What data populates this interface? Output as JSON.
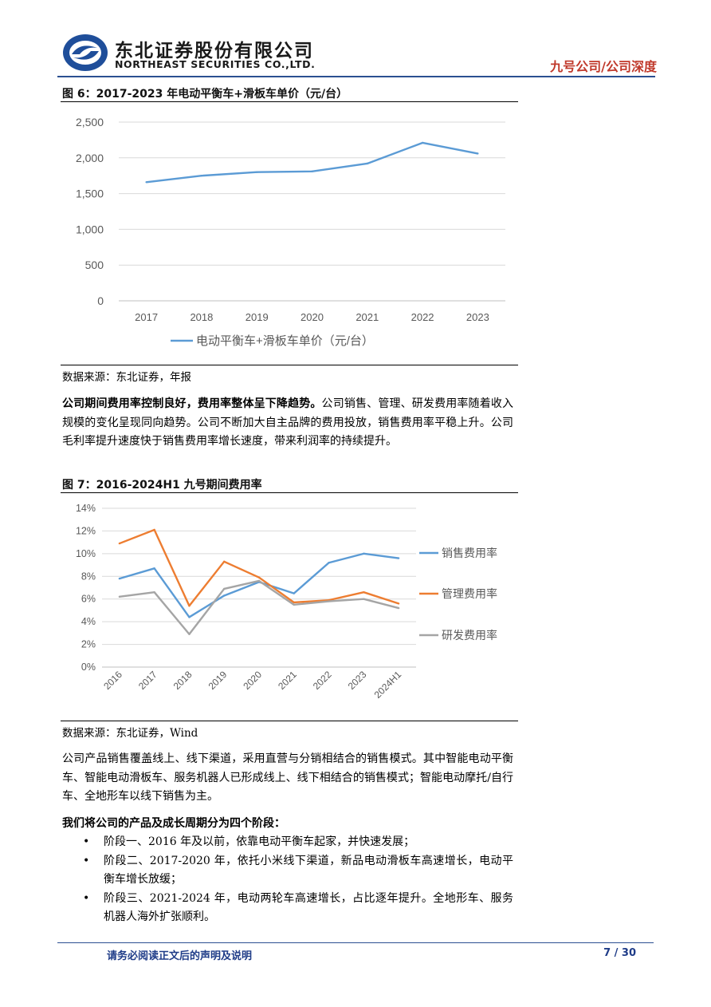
{
  "header": {
    "company_cn": "东北证券股份有限公司",
    "company_en": "NORTHEAST SECURITIES CO.,LTD.",
    "doc_type": "九号公司/公司深度"
  },
  "figure6": {
    "caption": "图 6：2017-2023 年电动平衡车+滑板车单价（元/台）",
    "source": "数据来源：东北证券，年报"
  },
  "paragraph1": {
    "bold": "公司期间费用率控制良好，费用率整体呈下降趋势。",
    "text": "公司销售、管理、研发费用率随着收入规模的变化呈现同向趋势。公司不断加大自主品牌的费用投放，销售费用率平稳上升。公司毛利率提升速度快于销售费用率增长速度，带来利润率的持续提升。"
  },
  "figure7": {
    "caption": "图 7：2016-2024H1 九号期间费用率",
    "source": "数据来源：东北证券，Wind"
  },
  "paragraph2": "公司产品销售覆盖线上、线下渠道，采用直营与分销相结合的销售模式。其中智能电动平衡车、智能电动滑板车、服务机器人已形成线上、线下相结合的销售模式；智能电动摩托/自行车、全地形车以线下销售为主。",
  "paragraph3_bold": "我们将公司的产品及成长周期分为四个阶段：",
  "bullets": [
    "阶段一、2016 年及以前，依靠电动平衡车起家，并快速发展；",
    "阶段二、2017-2020 年，依托小米线下渠道，新品电动滑板车高速增长，电动平衡车增长放缓；",
    "阶段三、2021-2024 年，电动两轮车高速增长，占比逐年提升。全地形车、服务机器人海外扩张顺利。"
  ],
  "footer": {
    "disclaimer": "请务必阅读正文后的声明及说明",
    "page": "7 / 30"
  },
  "chart_data": [
    {
      "type": "line",
      "categories": [
        "2017",
        "2018",
        "2019",
        "2020",
        "2021",
        "2022",
        "2023"
      ],
      "series": [
        {
          "name": "电动平衡车+滑板车单价（元/台）",
          "values": [
            1660,
            1750,
            1800,
            1810,
            1920,
            2210,
            2060
          ],
          "color": "#5b9bd5"
        }
      ],
      "ylim": [
        0,
        2500
      ],
      "yticks": [
        "0",
        "500",
        "1,000",
        "1,500",
        "2,000",
        "2,500"
      ],
      "grid": true,
      "legend": "bottom"
    },
    {
      "type": "line",
      "categories": [
        "2016",
        "2017",
        "2018",
        "2019",
        "2020",
        "2021",
        "2022",
        "2023",
        "2024H1"
      ],
      "series": [
        {
          "name": "销售费用率",
          "values": [
            7.8,
            8.7,
            4.4,
            6.3,
            7.5,
            6.5,
            9.2,
            10.0,
            9.6
          ],
          "color": "#5b9bd5"
        },
        {
          "name": "管理费用率",
          "values": [
            10.9,
            12.1,
            5.4,
            9.3,
            7.9,
            5.7,
            5.9,
            6.6,
            5.6
          ],
          "color": "#ed7d31"
        },
        {
          "name": "研发费用率",
          "values": [
            6.2,
            6.6,
            2.9,
            6.9,
            7.6,
            5.5,
            5.8,
            6.0,
            5.2
          ],
          "color": "#a5a5a5"
        }
      ],
      "ylim": [
        0,
        14
      ],
      "yticks": [
        "0%",
        "2%",
        "4%",
        "6%",
        "8%",
        "10%",
        "12%",
        "14%"
      ],
      "grid": true,
      "legend": "right"
    }
  ]
}
